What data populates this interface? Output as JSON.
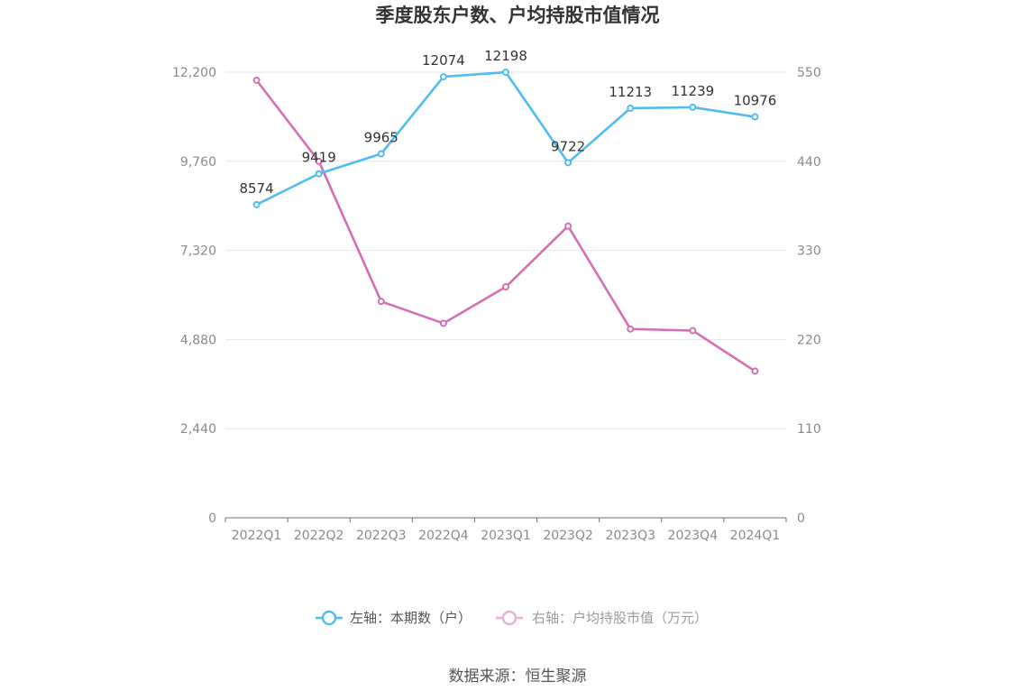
{
  "chart_data": {
    "type": "line",
    "title": "季度股东户数、户均持股市值情况",
    "categories": [
      "2022Q1",
      "2022Q2",
      "2022Q3",
      "2022Q4",
      "2023Q1",
      "2023Q2",
      "2023Q3",
      "2023Q4",
      "2024Q1"
    ],
    "series": [
      {
        "name": "左轴：本期数（户）",
        "axis": "left",
        "color": "#4fbdf1",
        "values": [
          8574,
          9419,
          9965,
          12074,
          12198,
          9722,
          11213,
          11239,
          10976
        ],
        "show_data_labels": true
      },
      {
        "name": "右轴：户均持股市值（万元）",
        "axis": "right",
        "color": "#d46fb4",
        "legend_color": "#e6b3d5",
        "values": [
          540,
          440,
          267,
          240,
          285,
          360,
          233,
          231,
          181
        ],
        "show_data_labels": false
      }
    ],
    "left_axis": {
      "ylim": [
        0,
        12200
      ],
      "ticks": [
        0,
        2440,
        4880,
        7320,
        9760,
        12200
      ],
      "tick_labels": [
        "0",
        "2,440",
        "4,880",
        "7,320",
        "9,760",
        "12,200"
      ]
    },
    "right_axis": {
      "ylim": [
        0,
        550
      ],
      "ticks": [
        0,
        110,
        220,
        330,
        440,
        550
      ],
      "tick_labels": [
        "0",
        "110",
        "220",
        "330",
        "440",
        "550"
      ]
    },
    "grid": true,
    "legend": "bottom-center"
  },
  "source": "数据来源：恒生聚源"
}
